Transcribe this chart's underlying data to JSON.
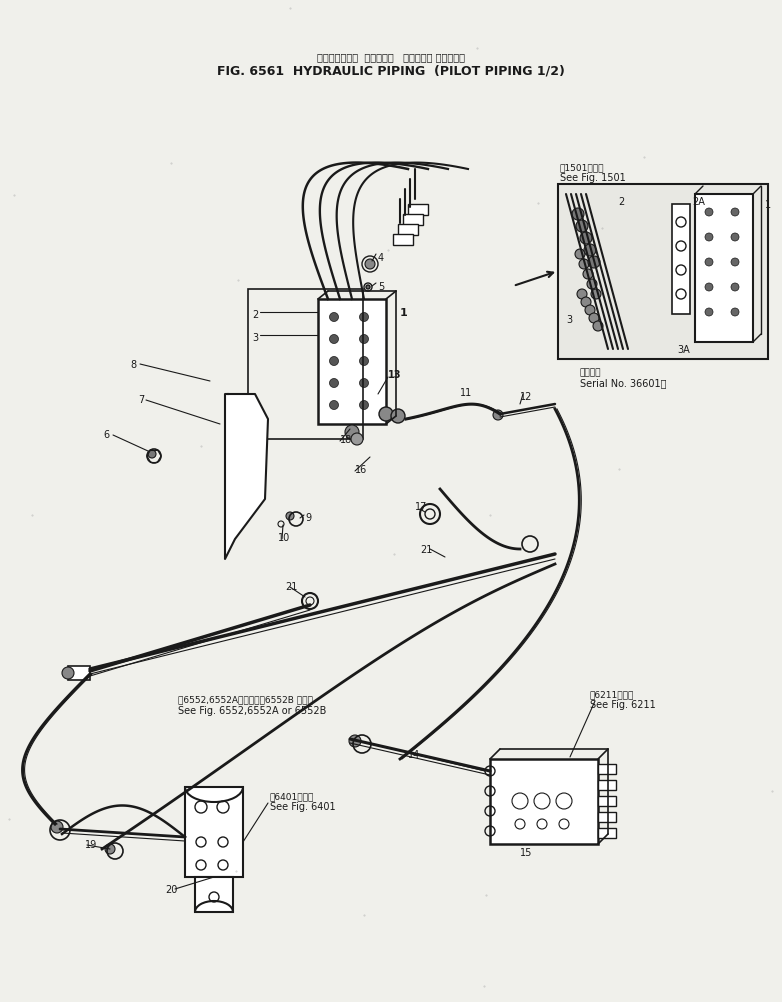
{
  "title_jp": "ハイドロリック  パイピング   パイロット パイピング",
  "title_en": "FIG. 6561  HYDRAULIC PIPING  (PILOT PIPING 1/2)",
  "bg_color": "#f0f0eb",
  "line_color": "#1a1a1a",
  "fig_width": 7.82,
  "fig_height": 10.03,
  "inset_label_jp": "第1501図参照",
  "inset_label_en": "See Fig. 1501",
  "serial_label_jp": "適用号番",
  "serial_label_en": "Serial No. 36601～",
  "ref_6552_jp": "第6552,6552A図または第6552B 図参照",
  "ref_6552_en": "See Fig. 6552,6552A or 6552B",
  "ref_6401_jp": "第6401図参照",
  "ref_6401_en": "See Fig. 6401",
  "ref_6211_jp": "第6211図参照",
  "ref_6211_en": "See Fig. 6211"
}
